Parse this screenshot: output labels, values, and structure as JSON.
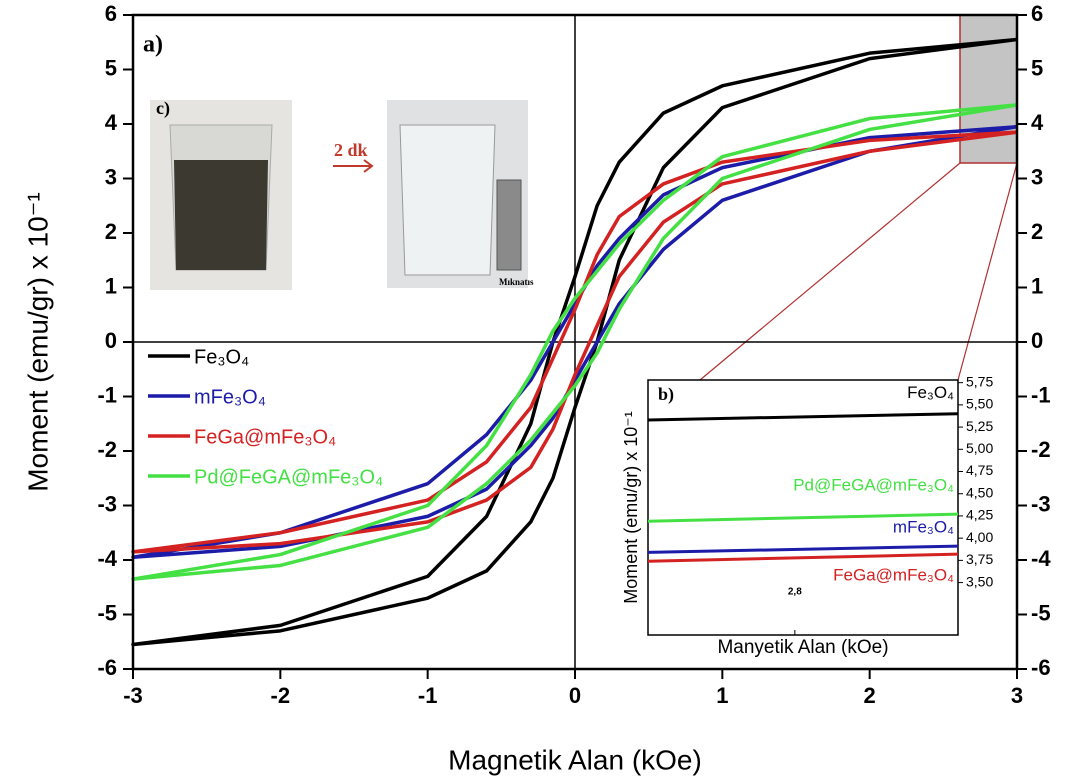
{
  "chart_data": [
    {
      "type": "line",
      "x_label": "Magnetik Alan (kOe)",
      "y_label": "Moment (emu/gr) x 10⁻¹",
      "xlim": [
        -3,
        3
      ],
      "xticks": [
        -3,
        -2,
        -1,
        0,
        1,
        2,
        3
      ],
      "ylim": [
        -6,
        6
      ],
      "yticks": [
        -6,
        -5,
        -4,
        -3,
        -2,
        -1,
        0,
        1,
        2,
        3,
        4,
        5,
        6
      ],
      "y2lim": [
        -6,
        6
      ],
      "y2ticks": [
        -6,
        -5,
        -4,
        -3,
        -2,
        -1,
        0,
        1,
        2,
        3,
        4,
        5,
        6
      ],
      "annotations": [
        "a)",
        "c)",
        "2 dk",
        "Mıknatıs"
      ],
      "x": [
        3,
        2,
        1,
        0.6,
        0.3,
        0.15,
        0,
        -0.15,
        -0.3,
        -0.6,
        -1,
        -2,
        -3,
        -2,
        -1,
        -0.6,
        -0.3,
        -0.15,
        0,
        0.15,
        0.3,
        0.6,
        1,
        2,
        3
      ],
      "series": [
        {
          "name": "Fe₃O₄",
          "color": "#000000",
          "values": [
            5.55,
            5.3,
            4.7,
            4.2,
            3.3,
            2.5,
            1.2,
            0,
            -1.5,
            -3.2,
            -4.3,
            -5.2,
            -5.55,
            -5.3,
            -4.7,
            -4.2,
            -3.3,
            -2.5,
            -1.2,
            0,
            1.5,
            3.2,
            4.3,
            5.2,
            5.55
          ]
        },
        {
          "name": "mFe₃O₄",
          "color": "#1c1ca8",
          "values": [
            3.95,
            3.75,
            3.2,
            2.7,
            1.9,
            1.4,
            0.7,
            0,
            -0.7,
            -1.7,
            -2.6,
            -3.5,
            -3.95,
            -3.75,
            -3.2,
            -2.7,
            -1.9,
            -1.4,
            -0.7,
            0,
            0.7,
            1.7,
            2.6,
            3.5,
            3.95
          ]
        },
        {
          "name": "FeGa@mFe₃O₄",
          "color": "#d42222",
          "values": [
            3.85,
            3.7,
            3.3,
            2.9,
            2.3,
            1.6,
            0.6,
            -0.3,
            -1.2,
            -2.2,
            -2.9,
            -3.5,
            -3.85,
            -3.7,
            -3.3,
            -2.9,
            -2.3,
            -1.6,
            -0.6,
            0.3,
            1.2,
            2.2,
            2.9,
            3.5,
            3.85
          ]
        },
        {
          "name": "Pd@FeGA@mFe₃O₄",
          "color": "#44e044",
          "values": [
            4.35,
            4.1,
            3.4,
            2.6,
            1.8,
            1.3,
            0.8,
            0.2,
            -0.6,
            -1.9,
            -3.0,
            -3.9,
            -4.35,
            -4.1,
            -3.4,
            -2.6,
            -1.8,
            -1.3,
            -0.8,
            -0.2,
            0.6,
            1.9,
            3.0,
            3.9,
            4.35
          ]
        }
      ]
    },
    {
      "type": "line",
      "annotation": "b)",
      "x_label": "Manyetik Alan (kOe)",
      "y_label": "Moment (emu/gr) x 10⁻¹",
      "xlim": [
        2.62,
        3
      ],
      "xticks": [
        {
          "value": 2.8,
          "label": "2,8"
        }
      ],
      "ylim": [
        2.91,
        5.78
      ],
      "yticks": [
        {
          "value": 3.5,
          "label": "3,50"
        },
        {
          "value": 3.75,
          "label": "3,75"
        },
        {
          "value": 4,
          "label": "4,00"
        },
        {
          "value": 4.25,
          "label": "4,25"
        },
        {
          "value": 4.5,
          "label": "4,50"
        },
        {
          "value": 4.75,
          "label": "4,75"
        },
        {
          "value": 5,
          "label": "5,00"
        },
        {
          "value": 5.25,
          "label": "5,25"
        },
        {
          "value": 5.5,
          "label": "5,50"
        },
        {
          "value": 5.75,
          "label": "5,75"
        }
      ],
      "x": [
        2.62,
        3
      ],
      "series": [
        {
          "name": "Fe₃O₄",
          "color": "#000000",
          "values": [
            5.33,
            5.4
          ]
        },
        {
          "name": "mFe₃O₄",
          "color": "#1c1ca8",
          "values": [
            3.84,
            3.91
          ]
        },
        {
          "name": "FeGa@mFe₃O₄",
          "color": "#d42222",
          "values": [
            3.74,
            3.82
          ]
        },
        {
          "name": "Pd@FeGA@mFe₃O₄",
          "color": "#44e044",
          "values": [
            4.19,
            4.27
          ]
        }
      ]
    }
  ]
}
